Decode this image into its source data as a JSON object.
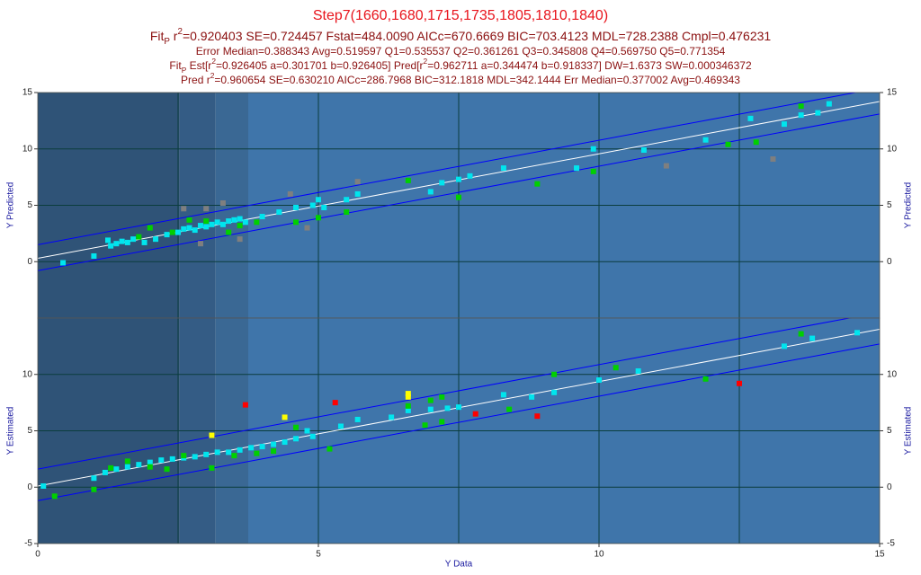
{
  "header": {
    "lines": [
      {
        "color": "#e8141c",
        "size": 16,
        "parts": [
          {
            "text": "Step7(1660,1680,1715,1735,1805,1810,1840)"
          }
        ]
      },
      {
        "color": "#8b1010",
        "size": 14,
        "parts": [
          {
            "text": "Fit"
          },
          {
            "text": "P",
            "style": "sub"
          },
          {
            "text": " r"
          },
          {
            "text": "2",
            "style": "sup"
          },
          {
            "text": "=0.920403 SE=0.724457 Fstat=484.0090 AICc=670.6669 BIC=703.4123 MDL=728.2388 Cmpl=0.476231"
          }
        ]
      },
      {
        "color": "#8b1010",
        "size": 12,
        "parts": [
          {
            "text": "Error Median=0.388343 Avg=0.519597 Q1=0.535537 Q2=0.361261 Q3=0.345808 Q4=0.569750 Q5=0.771354"
          }
        ]
      },
      {
        "color": "#8b1010",
        "size": 12,
        "parts": [
          {
            "text": "Fit"
          },
          {
            "text": "P",
            "style": "sub"
          },
          {
            "text": " Est[r"
          },
          {
            "text": "2",
            "style": "sup"
          },
          {
            "text": "=0.926405 a=0.301701 b=0.926405] Pred[r"
          },
          {
            "text": "2",
            "style": "sup"
          },
          {
            "text": "=0.962711 a=0.344474 b=0.918337] DW=1.6373 SW=0.000346372"
          }
        ]
      },
      {
        "color": "#8b1010",
        "size": 12,
        "parts": [
          {
            "text": "Pred r"
          },
          {
            "text": "2",
            "style": "sup"
          },
          {
            "text": "=0.960654 SE=0.630210 AICc=286.7968 BIC=312.1818 MDL=342.1444 Err Median=0.377002 Avg=0.469343"
          }
        ]
      }
    ]
  },
  "chart_data": [
    {
      "type": "scatter",
      "ylabel": "Y Predicted",
      "xlim": [
        0,
        15
      ],
      "ylim": [
        -5,
        15
      ],
      "yticks": [
        0,
        5,
        10,
        15
      ],
      "xgrid": [
        0,
        2.5,
        5,
        7.5,
        10,
        12.5,
        15
      ],
      "grid_color": "#0b3d3d",
      "bands": [
        {
          "from": 0,
          "to": 2.53,
          "color": "#2f5377"
        },
        {
          "from": 2.53,
          "to": 3.17,
          "color": "#345c85"
        },
        {
          "from": 3.17,
          "to": 3.75,
          "color": "#3a6894"
        },
        {
          "from": 3.75,
          "to": 15,
          "color": "#3f75aa"
        }
      ],
      "lines": [
        {
          "color": "#0000ff",
          "x": [
            0,
            15
          ],
          "values": [
            1.5,
            15.4
          ]
        },
        {
          "color": "#ffffff",
          "x": [
            0,
            15
          ],
          "values": [
            0.3,
            14.2
          ]
        },
        {
          "color": "#0000ff",
          "x": [
            0,
            15
          ],
          "values": [
            -0.8,
            13.1
          ]
        }
      ],
      "series": [
        {
          "color": "#00e5ee",
          "x": [
            0.45,
            1.0,
            1.25,
            1.3,
            1.4,
            1.5,
            1.6,
            1.7,
            1.9,
            2.1,
            2.3,
            2.5,
            2.6,
            2.7,
            2.8,
            2.9,
            3.0,
            3.1,
            3.2,
            3.3,
            3.4,
            3.5,
            3.6,
            3.7,
            4.0,
            4.3,
            4.6,
            4.9,
            5.0,
            5.1,
            5.5,
            5.7,
            7.0,
            7.2,
            7.5,
            7.7,
            8.3,
            9.6,
            9.9,
            10.8,
            11.9,
            12.7,
            13.3,
            13.6,
            13.9,
            14.1
          ],
          "values": [
            -0.1,
            0.5,
            1.9,
            1.4,
            1.6,
            1.8,
            1.7,
            2.0,
            1.7,
            2.0,
            2.4,
            2.6,
            2.9,
            3.0,
            2.8,
            3.2,
            3.1,
            3.3,
            3.5,
            3.3,
            3.6,
            3.7,
            3.8,
            3.5,
            4.0,
            4.4,
            4.8,
            5.0,
            5.5,
            4.8,
            5.5,
            6.0,
            6.2,
            7.0,
            7.3,
            7.6,
            8.3,
            8.3,
            10.0,
            9.9,
            10.8,
            12.7,
            12.2,
            13.0,
            13.2,
            14.0
          ]
        },
        {
          "color": "#00d000",
          "x": [
            1.8,
            2.0,
            2.4,
            2.7,
            3.0,
            3.4,
            3.6,
            3.9,
            4.6,
            5.0,
            5.5,
            6.6,
            7.5,
            8.9,
            9.9,
            12.3,
            12.8,
            13.6
          ],
          "values": [
            2.2,
            3.0,
            2.6,
            3.7,
            3.6,
            2.6,
            3.2,
            3.5,
            3.5,
            3.9,
            4.4,
            7.2,
            5.7,
            6.9,
            8.0,
            10.4,
            10.6,
            13.8
          ]
        },
        {
          "color": "#7f7f7f",
          "x": [
            2.6,
            2.9,
            3.0,
            3.3,
            3.6,
            4.5,
            4.8,
            5.7,
            11.2,
            13.1
          ],
          "values": [
            4.7,
            1.6,
            4.7,
            5.2,
            2.0,
            6.0,
            3.0,
            7.1,
            8.5,
            9.1
          ]
        }
      ]
    },
    {
      "type": "scatter",
      "ylabel": "Y Estimated",
      "xlabel": "Y Data",
      "xlim": [
        0,
        15
      ],
      "xticks": [
        0,
        5,
        10,
        15
      ],
      "ylim": [
        -5,
        15
      ],
      "yticks": [
        -5,
        0,
        5,
        10
      ],
      "xgrid": [
        0,
        2.5,
        5,
        7.5,
        10,
        12.5,
        15
      ],
      "grid_color": "#0b3d3d",
      "bands": [
        {
          "from": 0,
          "to": 2.53,
          "color": "#2f5377"
        },
        {
          "from": 2.53,
          "to": 3.17,
          "color": "#345c85"
        },
        {
          "from": 3.17,
          "to": 3.75,
          "color": "#3a6894"
        },
        {
          "from": 3.75,
          "to": 15,
          "color": "#3f75aa"
        }
      ],
      "lines": [
        {
          "color": "#0000ff",
          "x": [
            0,
            15
          ],
          "values": [
            1.6,
            15.5
          ]
        },
        {
          "color": "#ffffff",
          "x": [
            0,
            15
          ],
          "values": [
            0.1,
            14.0
          ]
        },
        {
          "color": "#0000ff",
          "x": [
            0,
            15
          ],
          "values": [
            -1.2,
            12.7
          ]
        }
      ],
      "series": [
        {
          "color": "#00e5ee",
          "x": [
            0.1,
            1.0,
            1.2,
            1.4,
            1.6,
            1.8,
            2.0,
            2.2,
            2.4,
            2.6,
            2.8,
            3.0,
            3.2,
            3.4,
            3.6,
            3.8,
            4.0,
            4.2,
            4.4,
            4.6,
            4.8,
            4.9,
            5.4,
            5.7,
            6.3,
            6.6,
            7.0,
            7.3,
            7.5,
            8.3,
            8.8,
            9.2,
            10.0,
            10.7,
            13.3,
            13.8,
            14.6
          ],
          "values": [
            0.1,
            0.8,
            1.3,
            1.6,
            1.8,
            2.0,
            2.2,
            2.4,
            2.5,
            2.6,
            2.7,
            2.9,
            3.1,
            3.1,
            3.3,
            3.5,
            3.6,
            3.8,
            4.0,
            4.3,
            5.0,
            4.5,
            5.4,
            6.0,
            6.2,
            6.8,
            6.9,
            7.0,
            7.1,
            8.2,
            8.0,
            8.4,
            9.5,
            10.3,
            12.5,
            13.2,
            13.7
          ]
        },
        {
          "color": "#00d000",
          "x": [
            0.3,
            1.0,
            1.3,
            1.6,
            2.0,
            2.3,
            2.6,
            3.1,
            3.5,
            3.9,
            4.2,
            4.6,
            5.2,
            6.6,
            6.9,
            7.0,
            7.2,
            7.2,
            8.4,
            9.2,
            10.3,
            11.9,
            13.6
          ],
          "values": [
            -0.8,
            -0.2,
            1.7,
            2.3,
            1.8,
            1.6,
            2.8,
            1.7,
            2.8,
            3.0,
            3.2,
            5.3,
            3.4,
            7.2,
            5.5,
            7.7,
            8.0,
            5.8,
            6.9,
            10.0,
            10.6,
            9.6,
            13.6
          ]
        },
        {
          "color": "#ff0000",
          "x": [
            3.7,
            5.3,
            7.8,
            8.9,
            12.5
          ],
          "values": [
            7.3,
            7.5,
            6.5,
            6.3,
            9.2
          ]
        },
        {
          "color": "#ffff00",
          "x": [
            3.1,
            4.4,
            6.6,
            6.6
          ],
          "values": [
            4.6,
            6.2,
            8.0,
            8.3
          ]
        }
      ]
    }
  ]
}
